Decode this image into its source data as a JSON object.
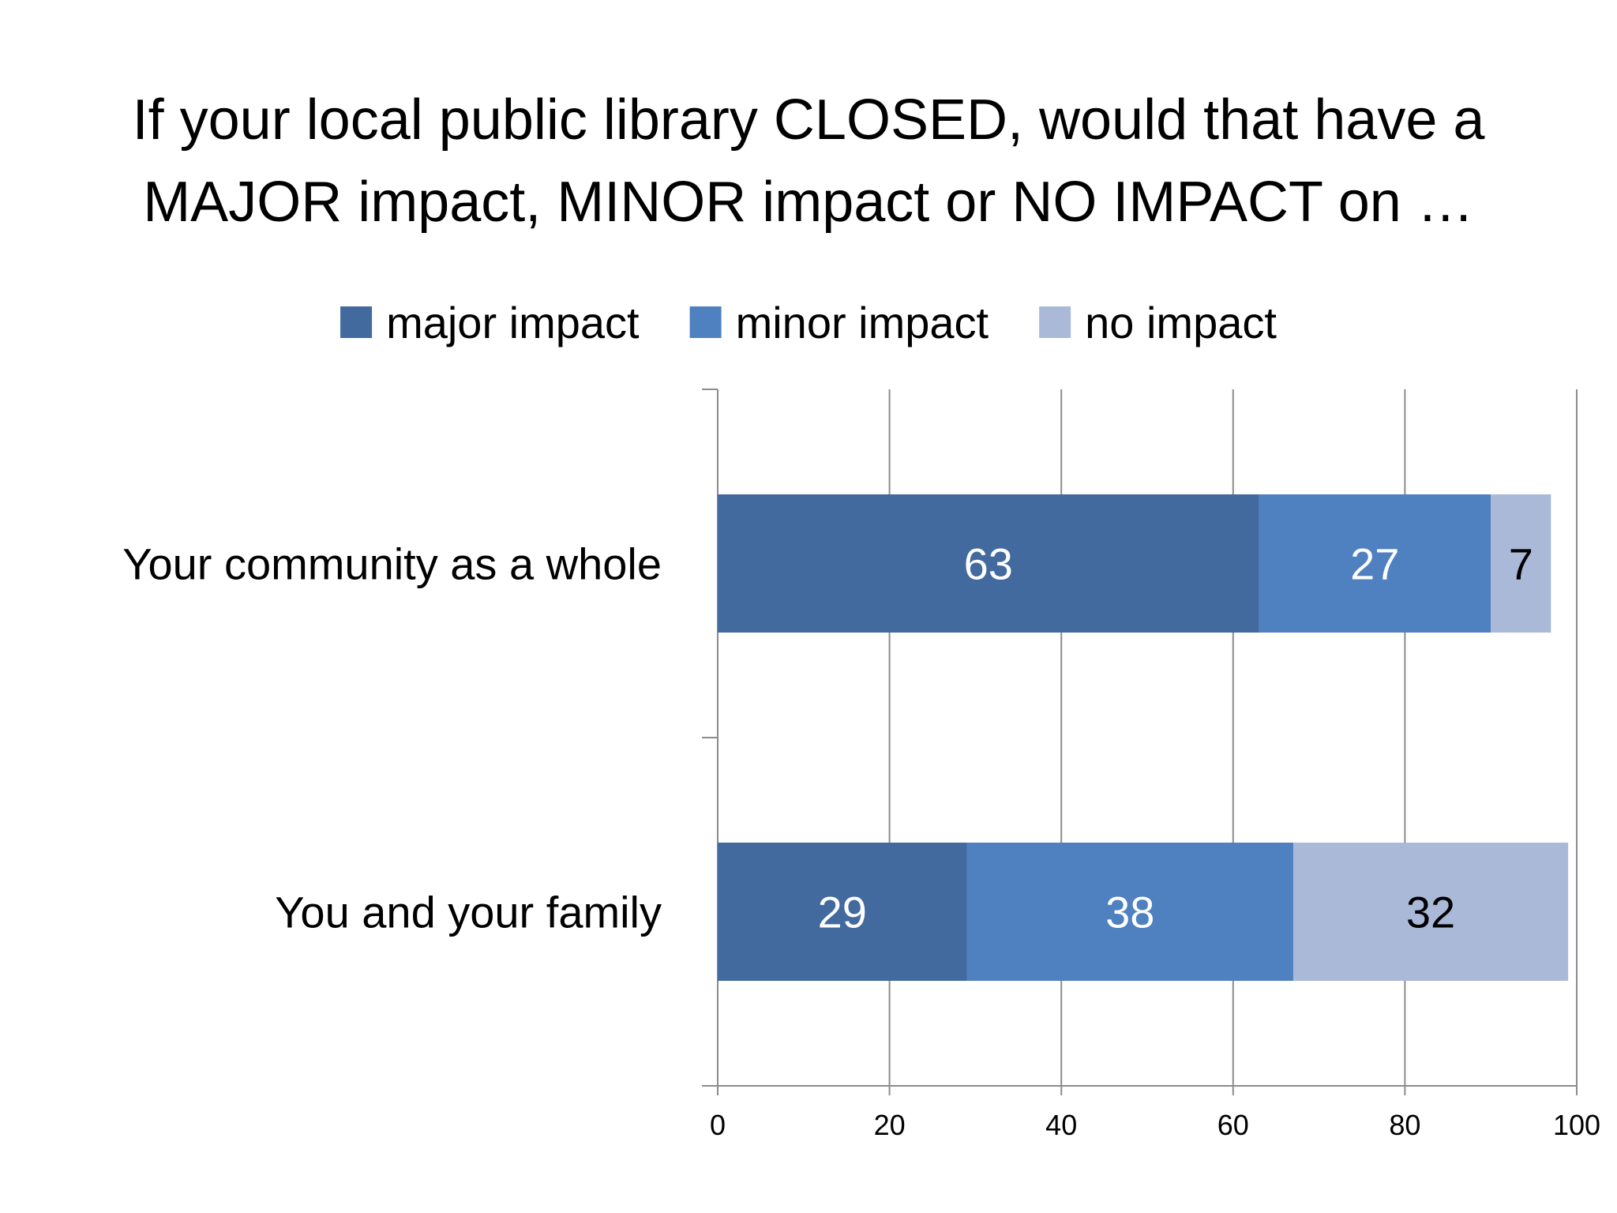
{
  "title_line1": "If your local public library CLOSED, would that have a",
  "title_line2": "MAJOR impact, MINOR impact or NO IMPACT on …",
  "chart_data": {
    "type": "bar",
    "orientation": "horizontal",
    "stacked": true,
    "categories": [
      "Your community as a whole",
      "You and your family"
    ],
    "series": [
      {
        "name": "major impact",
        "values": [
          63,
          29
        ],
        "color": "#426A9E",
        "label_color": "#ffffff"
      },
      {
        "name": "minor impact",
        "values": [
          27,
          38
        ],
        "color": "#4F80C0",
        "label_color": "#ffffff"
      },
      {
        "name": "no impact",
        "values": [
          7,
          32
        ],
        "color": "#AAB9D8",
        "label_color": "#000000"
      }
    ],
    "xlim": [
      0,
      100
    ],
    "xticks": [
      "0",
      "20",
      "40",
      "60",
      "80",
      "100"
    ],
    "grid": "vertical",
    "legend_position": "top"
  }
}
